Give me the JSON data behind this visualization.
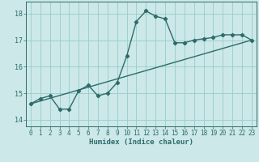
{
  "xlabel": "Humidex (Indice chaleur)",
  "bg_color": "#cce8e8",
  "line_color": "#2e6b6b",
  "grid_color": "#99cccc",
  "xlim": [
    -0.5,
    23.5
  ],
  "ylim": [
    13.75,
    18.45
  ],
  "xticks": [
    0,
    1,
    2,
    3,
    4,
    5,
    6,
    7,
    8,
    9,
    10,
    11,
    12,
    13,
    14,
    15,
    16,
    17,
    18,
    19,
    20,
    21,
    22,
    23
  ],
  "yticks": [
    14,
    15,
    16,
    17,
    18
  ],
  "curve1_x": [
    0,
    1,
    2,
    3,
    4,
    5,
    6,
    7,
    8,
    9,
    10,
    11,
    12,
    13,
    14,
    15,
    16,
    17,
    18,
    19,
    20,
    21,
    22,
    23
  ],
  "curve1_y": [
    14.6,
    14.8,
    14.9,
    14.4,
    14.4,
    15.1,
    15.3,
    14.9,
    15.0,
    15.4,
    16.4,
    17.7,
    18.1,
    17.9,
    17.8,
    16.9,
    16.9,
    17.0,
    17.05,
    17.1,
    17.2,
    17.2,
    17.2,
    17.0
  ],
  "curve2_x": [
    0,
    23
  ],
  "curve2_y": [
    14.6,
    17.0
  ],
  "marker": "D",
  "markersize": 2.2,
  "linewidth": 1.0,
  "tick_fontsize": 5.5,
  "xlabel_fontsize": 6.5
}
